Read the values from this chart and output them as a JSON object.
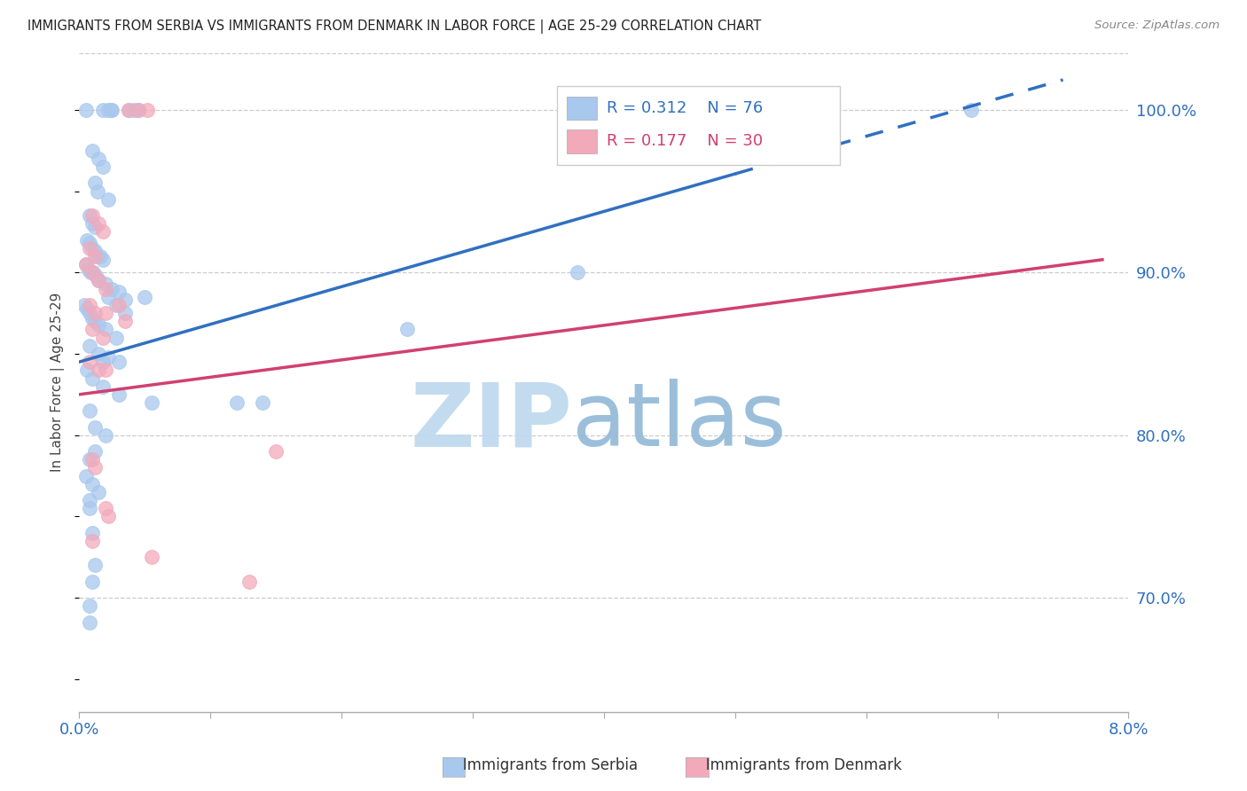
{
  "title": "IMMIGRANTS FROM SERBIA VS IMMIGRANTS FROM DENMARK IN LABOR FORCE | AGE 25-29 CORRELATION CHART",
  "source": "Source: ZipAtlas.com",
  "ylabel": "In Labor Force | Age 25-29",
  "xmin": 0.0,
  "xmax": 8.0,
  "ymin": 63.0,
  "ymax": 103.5,
  "yticks": [
    70.0,
    80.0,
    90.0,
    100.0
  ],
  "serbia_R": 0.312,
  "serbia_N": 76,
  "denmark_R": 0.177,
  "denmark_N": 30,
  "serbia_color": "#A8C8EE",
  "denmark_color": "#F2AABB",
  "serbia_line_color": "#3070C0",
  "denmark_line_color": "#D04070",
  "serbia_line_solid_end": 5.0,
  "serbia_line_x0": 0.0,
  "serbia_line_y0": 84.5,
  "serbia_line_x1": 8.0,
  "serbia_line_y1": 103.0,
  "denmark_line_x0": 0.0,
  "denmark_line_y0": 82.5,
  "denmark_line_x1": 8.0,
  "denmark_line_y1": 91.0,
  "serbia_points": [
    [
      0.05,
      100.0
    ],
    [
      0.18,
      100.0
    ],
    [
      0.22,
      100.0
    ],
    [
      0.25,
      100.0
    ],
    [
      0.24,
      100.0
    ],
    [
      0.38,
      100.0
    ],
    [
      0.42,
      100.0
    ],
    [
      0.45,
      100.0
    ],
    [
      6.8,
      100.0
    ],
    [
      0.1,
      97.5
    ],
    [
      0.15,
      97.0
    ],
    [
      0.18,
      96.5
    ],
    [
      0.12,
      95.5
    ],
    [
      0.14,
      95.0
    ],
    [
      0.22,
      94.5
    ],
    [
      0.08,
      93.5
    ],
    [
      0.1,
      93.0
    ],
    [
      0.12,
      92.8
    ],
    [
      0.06,
      92.0
    ],
    [
      0.08,
      91.8
    ],
    [
      0.1,
      91.5
    ],
    [
      0.12,
      91.3
    ],
    [
      0.14,
      91.0
    ],
    [
      0.16,
      91.0
    ],
    [
      0.18,
      90.8
    ],
    [
      0.05,
      90.5
    ],
    [
      0.07,
      90.2
    ],
    [
      0.09,
      90.0
    ],
    [
      0.11,
      90.0
    ],
    [
      0.13,
      89.8
    ],
    [
      0.15,
      89.5
    ],
    [
      0.2,
      89.3
    ],
    [
      0.25,
      89.0
    ],
    [
      0.3,
      88.8
    ],
    [
      0.35,
      88.3
    ],
    [
      0.5,
      88.5
    ],
    [
      0.04,
      88.0
    ],
    [
      0.06,
      87.8
    ],
    [
      0.08,
      87.5
    ],
    [
      0.1,
      87.2
    ],
    [
      0.12,
      87.0
    ],
    [
      0.15,
      86.8
    ],
    [
      0.2,
      86.5
    ],
    [
      0.28,
      86.0
    ],
    [
      0.08,
      85.5
    ],
    [
      0.15,
      85.0
    ],
    [
      0.22,
      84.8
    ],
    [
      0.3,
      84.5
    ],
    [
      0.06,
      84.0
    ],
    [
      0.1,
      83.5
    ],
    [
      0.18,
      83.0
    ],
    [
      0.3,
      82.5
    ],
    [
      0.55,
      82.0
    ],
    [
      0.08,
      81.5
    ],
    [
      0.12,
      80.5
    ],
    [
      0.08,
      78.5
    ],
    [
      0.05,
      77.5
    ],
    [
      0.1,
      77.0
    ],
    [
      0.08,
      76.0
    ],
    [
      0.1,
      74.0
    ],
    [
      0.12,
      72.0
    ],
    [
      0.08,
      68.5
    ],
    [
      1.2,
      82.0
    ],
    [
      1.4,
      82.0
    ],
    [
      2.5,
      86.5
    ],
    [
      3.8,
      90.0
    ],
    [
      0.22,
      88.5
    ],
    [
      0.28,
      88.0
    ],
    [
      0.35,
      87.5
    ],
    [
      0.18,
      84.5
    ],
    [
      0.12,
      79.0
    ],
    [
      0.08,
      75.5
    ],
    [
      0.1,
      71.0
    ],
    [
      0.08,
      69.5
    ],
    [
      0.15,
      76.5
    ],
    [
      0.2,
      80.0
    ]
  ],
  "denmark_points": [
    [
      0.38,
      100.0
    ],
    [
      0.45,
      100.0
    ],
    [
      0.52,
      100.0
    ],
    [
      0.1,
      93.5
    ],
    [
      0.15,
      93.0
    ],
    [
      0.18,
      92.5
    ],
    [
      0.08,
      91.5
    ],
    [
      0.12,
      91.0
    ],
    [
      0.05,
      90.5
    ],
    [
      0.1,
      90.0
    ],
    [
      0.15,
      89.5
    ],
    [
      0.2,
      89.0
    ],
    [
      0.08,
      88.0
    ],
    [
      0.3,
      88.0
    ],
    [
      0.12,
      87.5
    ],
    [
      0.2,
      87.5
    ],
    [
      0.35,
      87.0
    ],
    [
      0.1,
      86.5
    ],
    [
      0.18,
      86.0
    ],
    [
      0.08,
      84.5
    ],
    [
      0.15,
      84.0
    ],
    [
      0.2,
      84.0
    ],
    [
      0.1,
      78.5
    ],
    [
      0.12,
      78.0
    ],
    [
      0.2,
      75.5
    ],
    [
      0.22,
      75.0
    ],
    [
      0.1,
      73.5
    ],
    [
      1.5,
      79.0
    ],
    [
      0.55,
      72.5
    ],
    [
      1.3,
      71.0
    ]
  ],
  "background_color": "#FFFFFF",
  "watermark_text": "ZIPatlas",
  "watermark_color": "#C8DFF0"
}
